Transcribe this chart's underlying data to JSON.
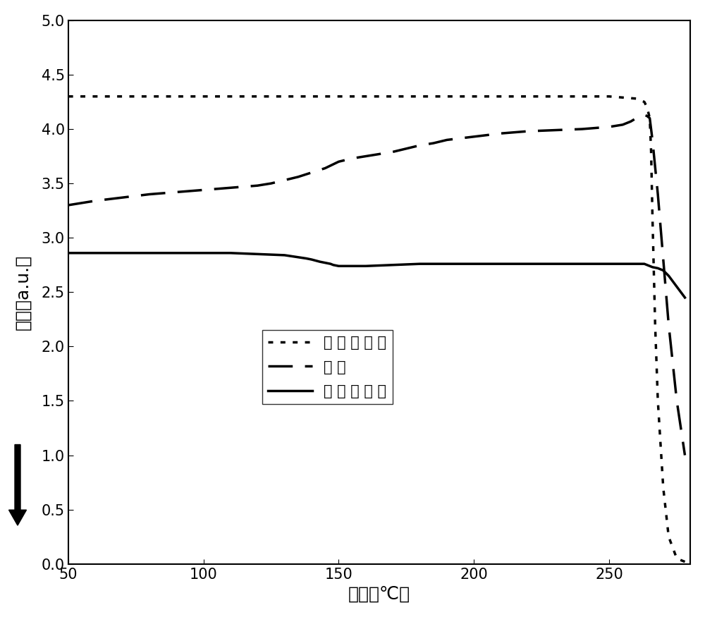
{
  "title": "",
  "xlabel": "温度（℃）",
  "ylabel": "吸热（a.u.）",
  "xlim": [
    50,
    280
  ],
  "ylim": [
    0.0,
    5.0
  ],
  "xticks": [
    50,
    100,
    150,
    200,
    250
  ],
  "yticks": [
    0.0,
    0.5,
    1.0,
    1.5,
    2.0,
    2.5,
    3.0,
    3.5,
    4.0,
    4.5,
    5.0
  ],
  "legend_labels": [
    "第 一 轮 加 热",
    "冷 却",
    "第 二 轮 加 热"
  ],
  "line1_x": [
    50,
    60,
    70,
    80,
    90,
    100,
    110,
    120,
    130,
    140,
    150,
    160,
    170,
    180,
    190,
    200,
    210,
    220,
    230,
    240,
    250,
    260,
    263,
    264,
    264.5,
    265,
    265.5,
    266,
    267,
    268,
    270,
    272,
    275,
    278
  ],
  "line1_y": [
    4.3,
    4.3,
    4.3,
    4.3,
    4.3,
    4.3,
    4.3,
    4.3,
    4.3,
    4.3,
    4.3,
    4.3,
    4.3,
    4.3,
    4.3,
    4.3,
    4.3,
    4.3,
    4.3,
    4.3,
    4.3,
    4.28,
    4.25,
    4.2,
    4.15,
    4.1,
    3.8,
    3.2,
    2.2,
    1.5,
    0.7,
    0.25,
    0.05,
    0.02
  ],
  "line2_x": [
    50,
    60,
    70,
    80,
    90,
    100,
    110,
    115,
    120,
    125,
    130,
    135,
    140,
    145,
    150,
    155,
    160,
    165,
    170,
    175,
    180,
    185,
    190,
    200,
    210,
    220,
    230,
    240,
    250,
    255,
    258,
    260,
    262,
    263,
    264,
    265,
    266,
    268,
    270,
    272,
    275,
    278
  ],
  "line2_y": [
    3.3,
    3.34,
    3.37,
    3.4,
    3.42,
    3.44,
    3.46,
    3.47,
    3.48,
    3.5,
    3.53,
    3.56,
    3.6,
    3.64,
    3.7,
    3.73,
    3.75,
    3.77,
    3.79,
    3.82,
    3.85,
    3.87,
    3.9,
    3.93,
    3.96,
    3.98,
    3.99,
    4.0,
    4.02,
    4.04,
    4.07,
    4.1,
    4.12,
    4.13,
    4.12,
    4.1,
    3.9,
    3.4,
    2.8,
    2.2,
    1.5,
    1.0
  ],
  "line3_x": [
    50,
    60,
    70,
    80,
    90,
    100,
    110,
    120,
    130,
    138,
    140,
    143,
    145,
    147,
    148,
    150,
    155,
    160,
    170,
    180,
    190,
    200,
    210,
    220,
    230,
    240,
    250,
    258,
    260,
    262,
    263,
    264,
    265,
    266,
    268,
    270,
    272,
    275,
    278
  ],
  "line3_y": [
    2.86,
    2.86,
    2.86,
    2.86,
    2.86,
    2.86,
    2.86,
    2.85,
    2.84,
    2.81,
    2.8,
    2.78,
    2.77,
    2.76,
    2.75,
    2.74,
    2.74,
    2.74,
    2.75,
    2.76,
    2.76,
    2.76,
    2.76,
    2.76,
    2.76,
    2.76,
    2.76,
    2.76,
    2.76,
    2.76,
    2.76,
    2.75,
    2.74,
    2.73,
    2.72,
    2.7,
    2.65,
    2.55,
    2.45
  ],
  "bg_color": "#ffffff",
  "font_size_label": 18,
  "font_size_tick": 15,
  "font_size_legend": 15
}
